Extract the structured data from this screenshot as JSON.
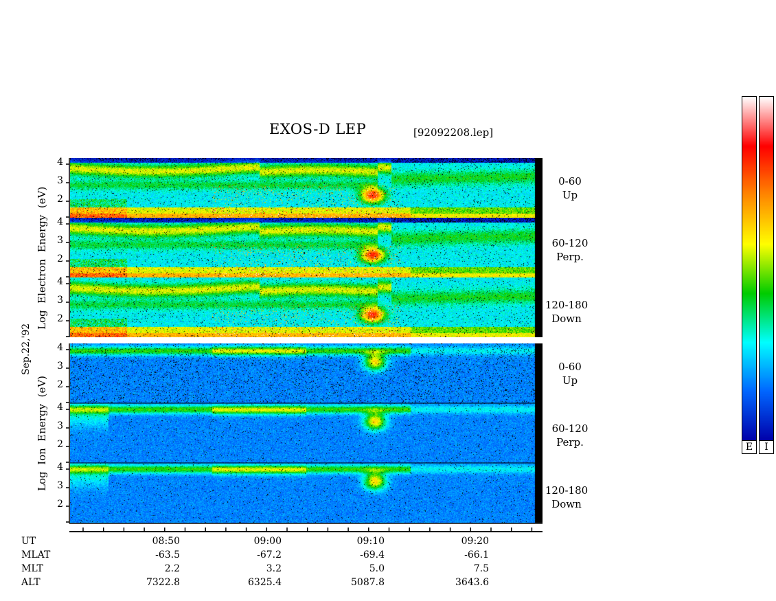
{
  "chart_data": {
    "type": "heatmap",
    "title": "EXOS-D LEP",
    "filename": "[92092208.lep]",
    "date_label": "Sep.22,'92",
    "electron_axis": [
      "Log",
      "Electron",
      "Energy",
      "(eV)"
    ],
    "ion_axis": [
      "Log",
      "Ion",
      "Energy",
      "(eV)"
    ],
    "y_ticks": [
      "4",
      "3",
      "2"
    ],
    "panels": [
      {
        "group": "electron",
        "pitch": "0-60",
        "dir": "Up"
      },
      {
        "group": "electron",
        "pitch": "60-120",
        "dir": "Perp."
      },
      {
        "group": "electron",
        "pitch": "120-180",
        "dir": "Down"
      },
      {
        "group": "ion",
        "pitch": "0-60",
        "dir": "Up"
      },
      {
        "group": "ion",
        "pitch": "60-120",
        "dir": "Perp."
      },
      {
        "group": "ion",
        "pitch": "120-180",
        "dir": "Down"
      }
    ],
    "x_axis": {
      "row_labels": [
        "UT",
        "MLAT",
        "MLT",
        "ALT"
      ],
      "columns": [
        {
          "UT": "08:50",
          "MLAT": "-63.5",
          "MLT": "2.2",
          "ALT": "7322.8"
        },
        {
          "UT": "09:00",
          "MLAT": "-67.2",
          "MLT": "3.2",
          "ALT": "6325.4"
        },
        {
          "UT": "09:10",
          "MLAT": "-69.4",
          "MLT": "5.0",
          "ALT": "5087.8"
        },
        {
          "UT": "09:20",
          "MLAT": "-66.1",
          "MLT": "7.5",
          "ALT": "3643.6"
        }
      ]
    },
    "colorbars": [
      "E",
      "I"
    ],
    "colormap": [
      "#ffffff",
      "#ff0000",
      "#ff8800",
      "#ffff00",
      "#00cc00",
      "#00ffff",
      "#0066ff",
      "#0000aa"
    ]
  }
}
